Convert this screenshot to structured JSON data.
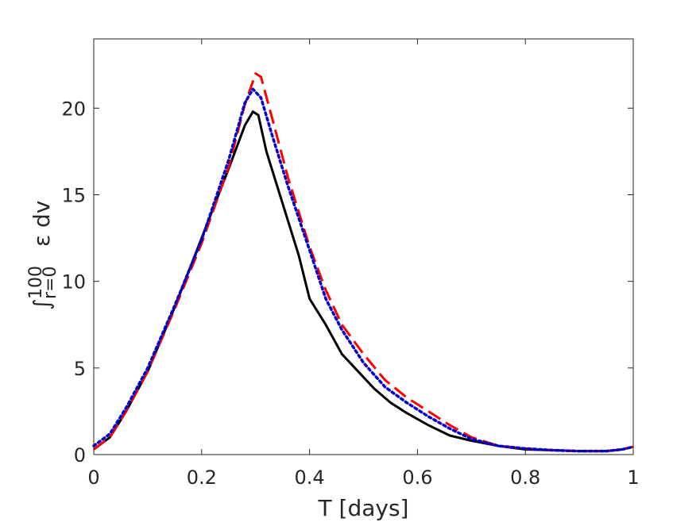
{
  "chart_data": {
    "type": "line",
    "xlabel": "T [days]",
    "ylabel": {
      "integral": "∫",
      "upper": "100",
      "lower": "r=0",
      "integrand": "ε dv"
    },
    "xlim": [
      0,
      1
    ],
    "ylim": [
      0,
      24
    ],
    "xticks": [
      0,
      0.2,
      0.4,
      0.6,
      0.8,
      1
    ],
    "xtick_labels": [
      "0",
      "0.2",
      "0.4",
      "0.6",
      "0.8",
      "1"
    ],
    "yticks": [
      0,
      5,
      10,
      15,
      20
    ],
    "ytick_labels": [
      "0",
      "5",
      "10",
      "15",
      "20"
    ],
    "grid": false,
    "legend": "none",
    "series": [
      {
        "style": "solid",
        "color": "#000000",
        "x": [
          0,
          0.03,
          0.06,
          0.1,
          0.15,
          0.2,
          0.25,
          0.28,
          0.295,
          0.305,
          0.32,
          0.35,
          0.38,
          0.4,
          0.43,
          0.46,
          0.49,
          0.52,
          0.55,
          0.58,
          0.62,
          0.66,
          0.7,
          0.75,
          0.8,
          0.85,
          0.9,
          0.95,
          0.98,
          1.0
        ],
        "y": [
          0.3,
          1.0,
          2.5,
          4.8,
          8.5,
          12.5,
          16.5,
          19.0,
          19.8,
          19.6,
          17.5,
          14.5,
          11.5,
          9.0,
          7.5,
          5.8,
          4.8,
          3.8,
          3.0,
          2.4,
          1.7,
          1.1,
          0.8,
          0.5,
          0.3,
          0.25,
          0.2,
          0.2,
          0.3,
          0.45
        ]
      },
      {
        "style": "dashed",
        "color": "#ff0000",
        "x": [
          0,
          0.03,
          0.06,
          0.1,
          0.15,
          0.2,
          0.25,
          0.28,
          0.3,
          0.31,
          0.33,
          0.36,
          0.4,
          0.43,
          0.46,
          0.5,
          0.54,
          0.58,
          0.62,
          0.66,
          0.7,
          0.75,
          0.8,
          0.85,
          0.9,
          0.95,
          0.98,
          1.0
        ],
        "y": [
          0.3,
          1.0,
          2.5,
          4.8,
          8.4,
          12.2,
          16.6,
          20.2,
          22.0,
          21.8,
          19.5,
          16.0,
          12.0,
          9.5,
          7.5,
          5.8,
          4.3,
          3.3,
          2.5,
          1.7,
          1.0,
          0.5,
          0.35,
          0.25,
          0.2,
          0.2,
          0.3,
          0.45
        ]
      },
      {
        "style": "dotted",
        "color": "#0000cc",
        "x": [
          0,
          0.03,
          0.06,
          0.1,
          0.15,
          0.2,
          0.25,
          0.28,
          0.295,
          0.31,
          0.33,
          0.36,
          0.4,
          0.43,
          0.46,
          0.5,
          0.54,
          0.58,
          0.62,
          0.66,
          0.7,
          0.75,
          0.8,
          0.85,
          0.9,
          0.95,
          0.98,
          1.0
        ],
        "y": [
          0.5,
          1.2,
          2.7,
          5.0,
          8.6,
          12.4,
          17.0,
          20.3,
          21.1,
          20.6,
          18.5,
          15.5,
          11.8,
          9.0,
          7.2,
          5.3,
          3.9,
          3.0,
          2.2,
          1.5,
          0.9,
          0.5,
          0.35,
          0.25,
          0.2,
          0.2,
          0.3,
          0.45
        ]
      }
    ]
  }
}
